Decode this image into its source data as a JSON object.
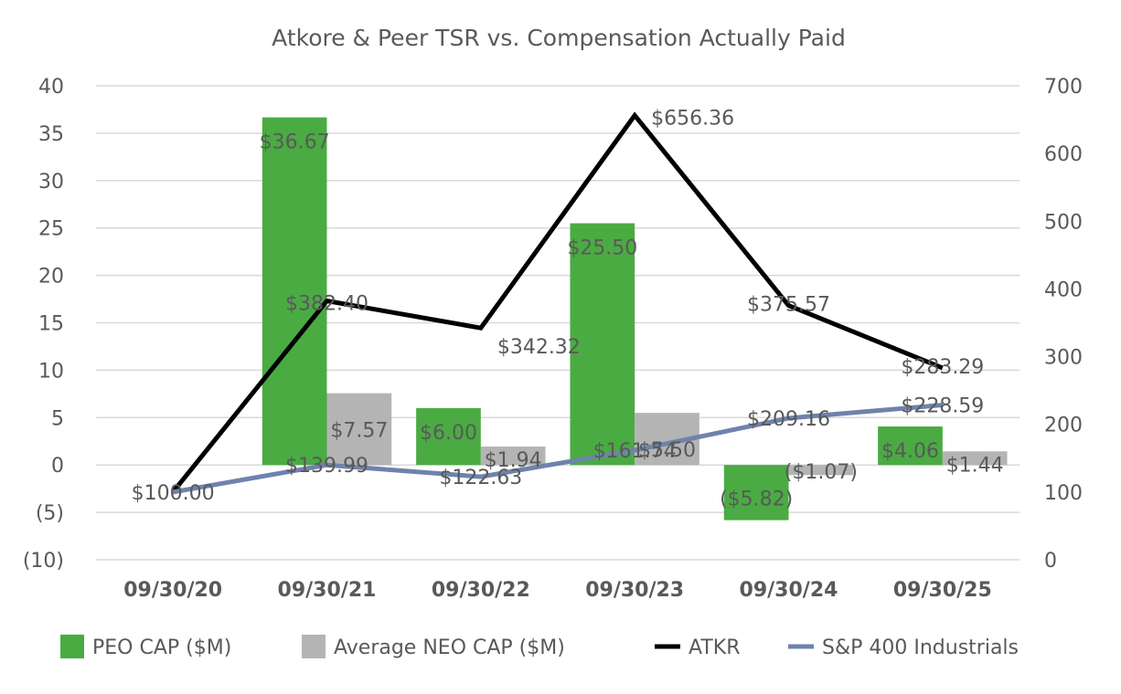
{
  "chart_data": {
    "type": "bar",
    "title": "Atkore & Peer TSR vs. Compensation Actually Paid",
    "categories": [
      "09/30/20",
      "09/30/21",
      "09/30/22",
      "09/30/23",
      "09/30/24",
      "09/30/25"
    ],
    "left_axis": {
      "ylim": [
        -10,
        40
      ],
      "ticks": [
        40,
        35,
        30,
        25,
        20,
        15,
        10,
        5,
        0,
        -5,
        -10
      ],
      "tick_labels": [
        "40",
        "35",
        "30",
        "25",
        "20",
        "15",
        "10",
        "5",
        "0",
        "(5)",
        "(10)"
      ]
    },
    "right_axis": {
      "ylim": [
        0,
        700
      ],
      "ticks": [
        700,
        600,
        500,
        400,
        300,
        200,
        100,
        0
      ],
      "tick_labels": [
        "700",
        "600",
        "500",
        "400",
        "300",
        "200",
        "100",
        "0"
      ]
    },
    "grid": true,
    "legend_position": "bottom",
    "series": [
      {
        "name": "PEO CAP ($M)",
        "kind": "bar",
        "axis": "left",
        "color": "#4aab43",
        "values": [
          null,
          36.67,
          6.0,
          25.5,
          -5.82,
          4.06
        ],
        "labels": [
          "",
          "$36.67",
          "$6.00",
          "$25.50",
          "($5.82)",
          "$4.06"
        ]
      },
      {
        "name": "Average NEO CAP ($M)",
        "kind": "bar",
        "axis": "left",
        "color": "#b4b4b4",
        "values": [
          null,
          7.57,
          1.94,
          5.5,
          -1.07,
          1.44
        ],
        "labels": [
          "",
          "$7.57",
          "$1.94",
          "$5.50",
          "($1.07)",
          "$1.44"
        ]
      },
      {
        "name": "ATKR",
        "kind": "line",
        "axis": "right",
        "color": "#000000",
        "values": [
          100.0,
          382.4,
          342.32,
          656.36,
          375.57,
          283.29
        ],
        "labels": [
          "$100.00",
          "$382.40",
          "$342.32",
          "$656.36",
          "$375.57",
          "$283.29"
        ]
      },
      {
        "name": "S&P 400 Industrials",
        "kind": "line",
        "axis": "right",
        "color": "#6e83ac",
        "values": [
          100.0,
          139.99,
          122.63,
          161.74,
          209.16,
          228.59
        ],
        "labels": [
          "",
          "$139.99",
          "$122.63",
          "$161.74",
          "$209.16",
          "$228.59"
        ]
      }
    ]
  }
}
